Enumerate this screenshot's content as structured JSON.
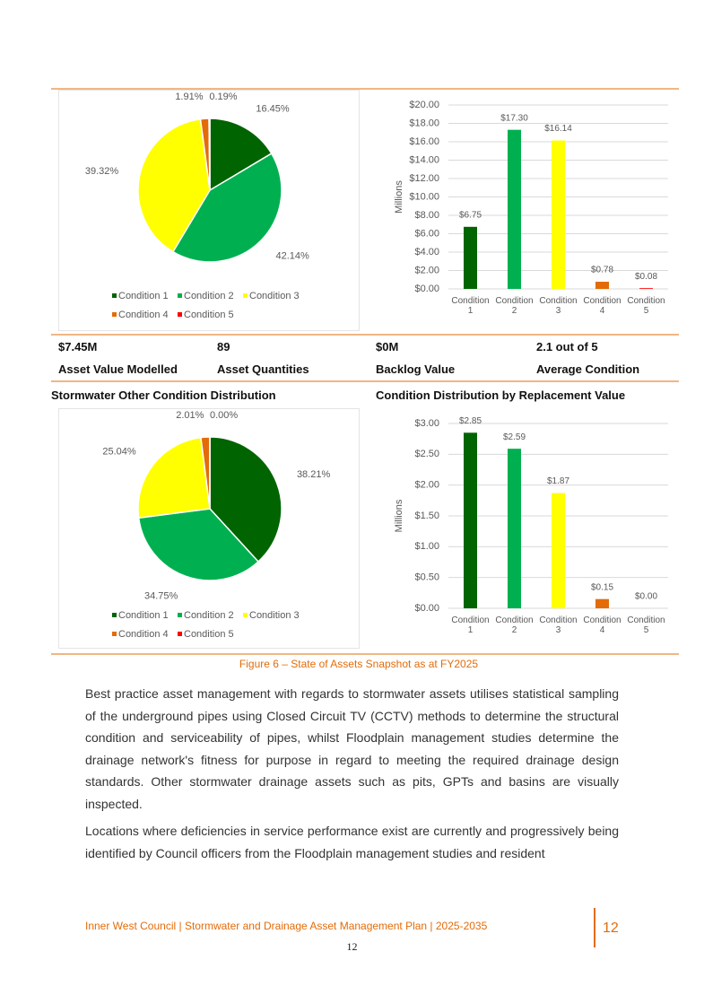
{
  "chart_data": [
    {
      "type": "pie",
      "categories": [
        "Condition 1",
        "Condition 2",
        "Condition 3",
        "Condition 4",
        "Condition 5"
      ],
      "values": [
        16.45,
        42.14,
        39.32,
        1.91,
        0.19
      ],
      "value_labels": [
        "16.45%",
        "42.14%",
        "39.32%",
        "1.91%",
        "0.19%"
      ],
      "colors": [
        "#006400",
        "#00b050",
        "#ffff00",
        "#e36c09",
        "#ff0000"
      ],
      "legend": "bottom"
    },
    {
      "type": "bar",
      "categories": [
        "Condition 1",
        "Condition 2",
        "Condition 3",
        "Condition 4",
        "Condition 5"
      ],
      "values": [
        6.75,
        17.3,
        16.14,
        0.78,
        0.08
      ],
      "value_labels": [
        "$6.75",
        "$17.30",
        "$16.14",
        "$0.78",
        "$0.08"
      ],
      "colors": [
        "#006400",
        "#00b050",
        "#ffff00",
        "#e36c09",
        "#ff0000"
      ],
      "ylabel": "Millions",
      "ylim": [
        0,
        20
      ],
      "yticks": [
        {
          "value": 0,
          "label": "$0.00"
        },
        {
          "value": 2,
          "label": "$2.00"
        },
        {
          "value": 4,
          "label": "$4.00"
        },
        {
          "value": 6,
          "label": "$6.00"
        },
        {
          "value": 8,
          "label": "$8.00"
        },
        {
          "value": 10,
          "label": "$10.00"
        },
        {
          "value": 12,
          "label": "$12.00"
        },
        {
          "value": 14,
          "label": "$14.00"
        },
        {
          "value": 16,
          "label": "$16.00"
        },
        {
          "value": 18,
          "label": "$18.00"
        },
        {
          "value": 20,
          "label": "$20.00"
        }
      ],
      "grid": true
    },
    {
      "type": "pie",
      "title": "Stormwater Other Condition Distribution",
      "categories": [
        "Condition 1",
        "Condition 2",
        "Condition 3",
        "Condition 4",
        "Condition 5"
      ],
      "values": [
        38.21,
        34.75,
        25.04,
        2.01,
        0.0
      ],
      "value_labels": [
        "38.21%",
        "34.75%",
        "25.04%",
        "2.01%",
        "0.00%"
      ],
      "colors": [
        "#006400",
        "#00b050",
        "#ffff00",
        "#e36c09",
        "#ff0000"
      ],
      "legend": "bottom"
    },
    {
      "type": "bar",
      "title": "Condition Distribution by Replacement Value",
      "categories": [
        "Condition 1",
        "Condition 2",
        "Condition 3",
        "Condition 4",
        "Condition 5"
      ],
      "values": [
        2.85,
        2.59,
        1.87,
        0.15,
        0.0
      ],
      "value_labels": [
        "$2.85",
        "$2.59",
        "$1.87",
        "$0.15",
        "$0.00"
      ],
      "colors": [
        "#006400",
        "#00b050",
        "#ffff00",
        "#e36c09",
        "#ff0000"
      ],
      "ylabel": "Millions",
      "ylim": [
        0,
        3
      ],
      "yticks": [
        {
          "value": 0,
          "label": "$0.00"
        },
        {
          "value": 0.5,
          "label": "$0.50"
        },
        {
          "value": 1,
          "label": "$1.00"
        },
        {
          "value": 1.5,
          "label": "$1.50"
        },
        {
          "value": 2,
          "label": "$2.00"
        },
        {
          "value": 2.5,
          "label": "$2.50"
        },
        {
          "value": 3,
          "label": "$3.00"
        }
      ],
      "grid": true
    }
  ],
  "summary": [
    {
      "value": "$7.45M",
      "label": "Asset Value Modelled"
    },
    {
      "value": "89",
      "label": "Asset Quantities"
    },
    {
      "value": "$0M",
      "label": "Backlog Value"
    },
    {
      "value": "2.1 out of 5",
      "label": "Average Condition"
    }
  ],
  "caption": "Figure 6 – State of Assets Snapshot as at FY2025",
  "body": [
    "Best practice asset management with regards to stormwater assets utilises statistical sampling of the underground pipes using Closed Circuit TV (CCTV) methods to determine the structural condition and serviceability of pipes, whilst Floodplain management studies determine the drainage network's fitness for purpose in regard to meeting the required drainage design standards. Other stormwater drainage assets such as pits, GPTs and basins are visually inspected.",
    "Locations where deficiencies in service performance exist are currently and progressively being identified by Council officers from the Floodplain management studies and resident"
  ],
  "footer": {
    "text": "Inner West Council | Stormwater and Drainage Asset Management Plan | 2025-2035",
    "page_badge": "12",
    "page_number": "12"
  }
}
